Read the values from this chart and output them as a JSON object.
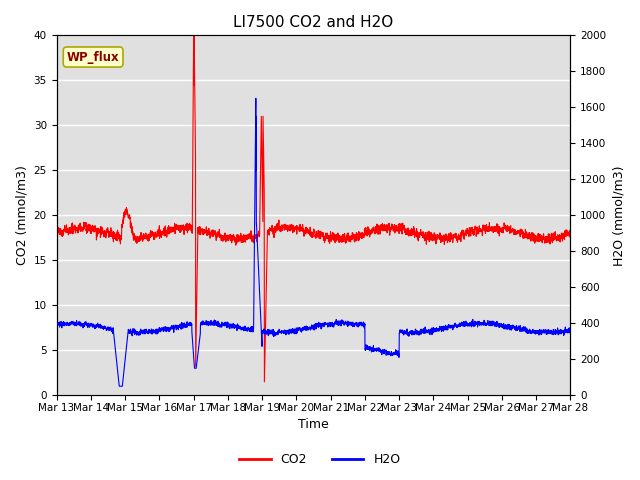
{
  "title": "LI7500 CO2 and H2O",
  "xlabel": "Time",
  "ylabel_left": "CO2 (mmol/m3)",
  "ylabel_right": "H2O (mmol/m3)",
  "ylim_left": [
    0,
    40
  ],
  "ylim_right": [
    0,
    2000
  ],
  "yticks_left": [
    0,
    5,
    10,
    15,
    20,
    25,
    30,
    35,
    40
  ],
  "yticks_right": [
    0,
    200,
    400,
    600,
    800,
    1000,
    1200,
    1400,
    1600,
    1800,
    2000
  ],
  "bg_color": "#e0e0e0",
  "grid_color": "white",
  "co2_color": "red",
  "h2o_color": "blue",
  "annotation_text": "WP_flux",
  "annotation_bg": "#ffffcc",
  "annotation_border": "#aaaa00",
  "legend_co2": "CO2",
  "legend_h2o": "H2O",
  "xtick_labels": [
    "Mar 13",
    "Mar 14",
    "Mar 15",
    "Mar 16",
    "Mar 17",
    "Mar 18",
    "Mar 19",
    "Mar 20",
    "Mar 21",
    "Mar 22",
    "Mar 23",
    "Mar 24",
    "Mar 25",
    "Mar 26",
    "Mar 27",
    "Mar 28"
  ],
  "title_fontsize": 11,
  "axis_label_fontsize": 9,
  "tick_fontsize": 7.5
}
